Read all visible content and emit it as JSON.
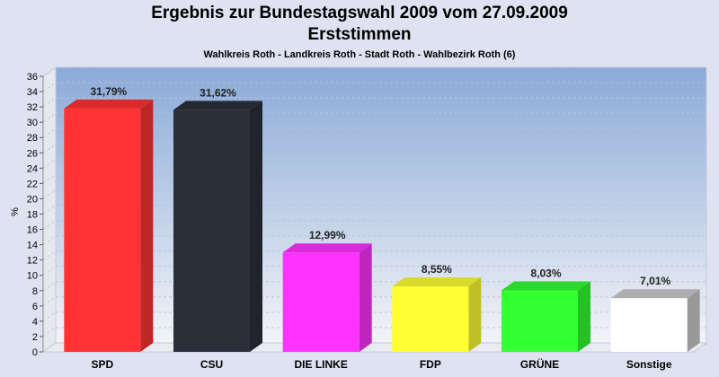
{
  "chart_data": {
    "type": "bar",
    "title": "Ergebnis zur Bundestagswahl 2009 vom 27.09.2009",
    "subtitle": "Erststimmen",
    "caption": "Wahlkreis Roth - Landkreis Roth - Stadt Roth - Wahlbezirk Roth (6)",
    "ylabel": "%",
    "xlabel": "",
    "ylim": [
      0,
      36
    ],
    "ytick_step": 2,
    "grid": true,
    "categories": [
      "SPD",
      "CSU",
      "DIE LINKE",
      "FDP",
      "GRÜNE",
      "Sonstige"
    ],
    "values": [
      31.79,
      31.62,
      12.99,
      8.55,
      8.03,
      7.01
    ],
    "value_labels": [
      "31,79%",
      "31,62%",
      "12,99%",
      "8,55%",
      "8,03%",
      "7,01%"
    ],
    "colors": [
      "#ff3333",
      "#2b2f3a",
      "#ff33ff",
      "#ffff33",
      "#33ff33",
      "#ffffff"
    ]
  }
}
